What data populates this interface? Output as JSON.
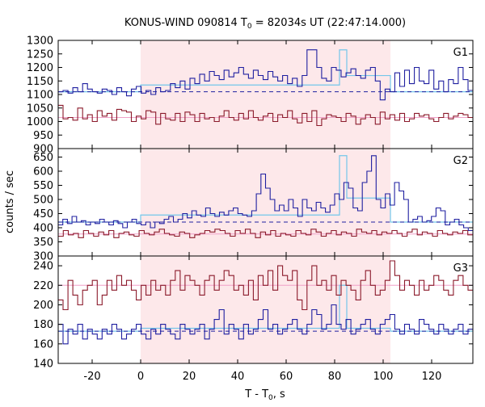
{
  "chart_data": {
    "type": "line",
    "title_main": "KONUS-WIND 090814 T",
    "title_sub": "0",
    "title_rest": " = 82034s UT (22:47:14.000)",
    "xlabel_main": "T - T",
    "xlabel_sub": "0",
    "xlabel_rest": ", s",
    "ylabel": "counts / sec",
    "xlim": [
      -34,
      137
    ],
    "xticks": [
      -20,
      0,
      20,
      40,
      60,
      80,
      100,
      120
    ],
    "highlight": {
      "x0": 0,
      "x1": 103,
      "color": "#fde8ea"
    },
    "colors": {
      "blue": "#1f1fa0",
      "red": "#8b1a2b",
      "fit": "#73c6ea",
      "pinkfit": "#f0a0c8",
      "dashed": "#1f1fa0"
    },
    "panels": [
      {
        "name": "G1",
        "ylim": [
          900,
          1300
        ],
        "yticks": [
          900,
          950,
          1000,
          1050,
          1100,
          1150,
          1200,
          1250,
          1300
        ],
        "blue_bg": 1110,
        "blue_fit": {
          "pre": 1110,
          "mid": 1135,
          "peak_x": [
            82,
            85
          ],
          "peak": 1265,
          "post_mid": 1170,
          "end": 1110
        },
        "red_fit": 1015,
        "blue_series": [
          1110,
          1115,
          1105,
          1125,
          1110,
          1140,
          1120,
          1110,
          1105,
          1120,
          1115,
          1100,
          1125,
          1110,
          1095,
          1120,
          1130,
          1105,
          1115,
          1100,
          1125,
          1110,
          1115,
          1140,
          1125,
          1150,
          1120,
          1160,
          1140,
          1175,
          1150,
          1185,
          1170,
          1155,
          1190,
          1165,
          1180,
          1200,
          1175,
          1160,
          1190,
          1170,
          1155,
          1185,
          1165,
          1150,
          1170,
          1140,
          1160,
          1130,
          1170,
          1265,
          1265,
          1200,
          1160,
          1150,
          1200,
          1190,
          1165,
          1180,
          1195,
          1170,
          1160,
          1190,
          1200,
          1150,
          1080,
          1120,
          1110,
          1180,
          1130,
          1190,
          1140,
          1200,
          1150,
          1140,
          1190,
          1120,
          1150,
          1110,
          1155,
          1140,
          1200,
          1155,
          1115
        ],
        "red_series": [
          1060,
          1010,
          1015,
          1005,
          1050,
          1010,
          1025,
          1000,
          1040,
          1020,
          1030,
          1005,
          1045,
          1040,
          1035,
          1000,
          1020,
          1010,
          1040,
          1035,
          990,
          1030,
          1010,
          1005,
          1030,
          1000,
          1035,
          1025,
          1000,
          1030,
          1010,
          1015,
          1000,
          1020,
          1040,
          1015,
          1005,
          1030,
          1010,
          1040,
          1015,
          1005,
          1020,
          1030,
          1000,
          1025,
          1015,
          1040,
          1010,
          995,
          1030,
          1000,
          1040,
          985,
          1010,
          1025,
          1020,
          1015,
          1000,
          1030,
          1020,
          990,
          1010,
          1025,
          1015,
          990,
          1035,
          1010,
          1025,
          1005,
          1030,
          1000,
          1010,
          1030,
          1020,
          1025,
          1010,
          1000,
          1015,
          1030,
          1010,
          1020,
          1030,
          1025,
          1015
        ]
      },
      {
        "name": "G2",
        "ylim": [
          300,
          680
        ],
        "yticks": [
          300,
          350,
          400,
          450,
          500,
          550,
          600,
          650
        ],
        "blue_bg": 420,
        "blue_fit": {
          "pre": 420,
          "mid": 445,
          "peak_x": [
            82,
            85
          ],
          "peak": 655,
          "post_mid": 505,
          "end": 420
        },
        "red_fit": 378,
        "blue_series": [
          410,
          430,
          415,
          440,
          420,
          425,
          410,
          420,
          415,
          430,
          420,
          410,
          425,
          415,
          400,
          420,
          430,
          415,
          410,
          420,
          400,
          420,
          415,
          430,
          440,
          420,
          430,
          450,
          435,
          460,
          445,
          440,
          470,
          450,
          440,
          455,
          445,
          460,
          470,
          450,
          445,
          440,
          460,
          520,
          590,
          540,
          500,
          460,
          480,
          460,
          500,
          470,
          440,
          500,
          470,
          460,
          490,
          470,
          455,
          480,
          520,
          500,
          560,
          540,
          470,
          460,
          560,
          600,
          655,
          500,
          470,
          520,
          480,
          560,
          530,
          500,
          420,
          430,
          440,
          420,
          425,
          440,
          470,
          460,
          410,
          420,
          430,
          410,
          400,
          390
        ],
        "red_series": [
          370,
          390,
          375,
          380,
          365,
          390,
          380,
          370,
          385,
          375,
          390,
          365,
          380,
          385,
          375,
          370,
          390,
          380,
          375,
          385,
          395,
          380,
          375,
          370,
          385,
          380,
          365,
          375,
          380,
          390,
          385,
          395,
          390,
          380,
          370,
          390,
          380,
          395,
          380,
          365,
          385,
          375,
          390,
          370,
          380,
          375,
          370,
          390,
          380,
          375,
          395,
          385,
          370,
          380,
          390,
          375,
          385,
          380,
          370,
          395,
          385,
          380,
          390,
          375,
          385,
          380,
          390,
          380,
          370,
          385,
          395,
          375,
          385,
          380,
          370,
          390,
          380,
          375,
          385,
          380,
          390,
          375
        ]
      },
      {
        "name": "G3",
        "ylim": [
          140,
          250
        ],
        "yticks": [
          140,
          160,
          180,
          200,
          220,
          240
        ],
        "blue_bg": 173,
        "blue_fit": {
          "pre": 173,
          "mid": 176,
          "peak_x": [
            82,
            85
          ],
          "peak": 220,
          "post_mid": 176,
          "end": 173
        },
        "red_fit": 220,
        "blue_series": [
          180,
          160,
          175,
          170,
          180,
          165,
          175,
          170,
          165,
          175,
          170,
          180,
          175,
          165,
          170,
          175,
          180,
          170,
          165,
          175,
          170,
          180,
          175,
          170,
          165,
          180,
          175,
          170,
          175,
          180,
          165,
          175,
          185,
          195,
          170,
          180,
          175,
          165,
          180,
          170,
          175,
          185,
          195,
          175,
          180,
          170,
          175,
          180,
          185,
          175,
          170,
          180,
          195,
          190,
          175,
          180,
          200,
          180,
          175,
          185,
          170,
          175,
          180,
          185,
          175,
          170,
          180,
          185,
          190,
          175,
          170,
          180,
          175,
          170,
          185,
          180,
          175,
          170,
          180,
          175,
          170,
          175,
          180,
          170,
          175
        ],
        "red_series": [
          205,
          195,
          225,
          210,
          200,
          215,
          220,
          225,
          200,
          210,
          225,
          215,
          230,
          220,
          225,
          215,
          205,
          220,
          210,
          225,
          215,
          220,
          210,
          225,
          235,
          215,
          230,
          225,
          220,
          210,
          225,
          230,
          215,
          225,
          235,
          230,
          215,
          220,
          210,
          225,
          205,
          230,
          220,
          235,
          215,
          240,
          230,
          225,
          235,
          205,
          195,
          225,
          240,
          220,
          225,
          215,
          230,
          210,
          225,
          220,
          215,
          205,
          225,
          235,
          220,
          210,
          215,
          225,
          245,
          230,
          215,
          225,
          220,
          210,
          225,
          215,
          220,
          230,
          225,
          215,
          210,
          225,
          230,
          220,
          215
        ]
      }
    ]
  }
}
